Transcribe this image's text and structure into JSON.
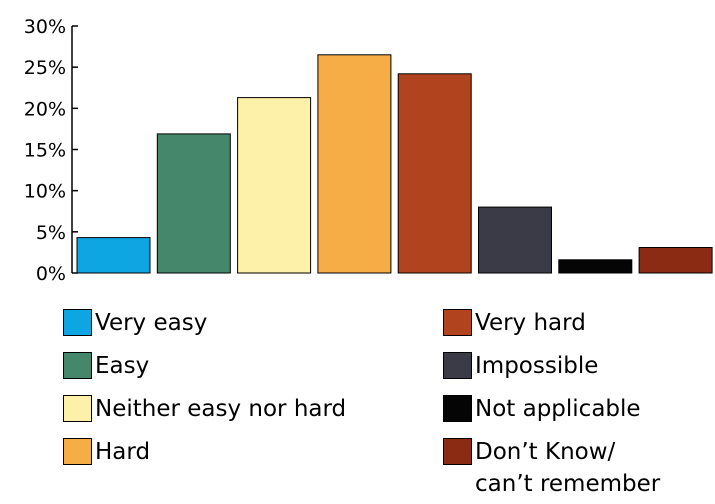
{
  "chart_data": {
    "type": "bar",
    "categories": [
      "Very easy",
      "Easy",
      "Neither easy nor hard",
      "Hard",
      "Very hard",
      "Impossible",
      "Not applicable",
      "Don’t Know/\ncan’t remember"
    ],
    "values": [
      4.3,
      16.9,
      21.3,
      26.5,
      24.2,
      8.0,
      1.6,
      3.1
    ],
    "colors": [
      "#0ea5e3",
      "#44876a",
      "#fdf0a8",
      "#f6ad45",
      "#b1441f",
      "#3b3b47",
      "#050505",
      "#8c2b13"
    ],
    "yticks": [
      "0%",
      "5%",
      "10%",
      "15%",
      "20%",
      "25%",
      "30%"
    ],
    "ylim": [
      0,
      30
    ],
    "legend_position": "bottom",
    "grid": false
  }
}
